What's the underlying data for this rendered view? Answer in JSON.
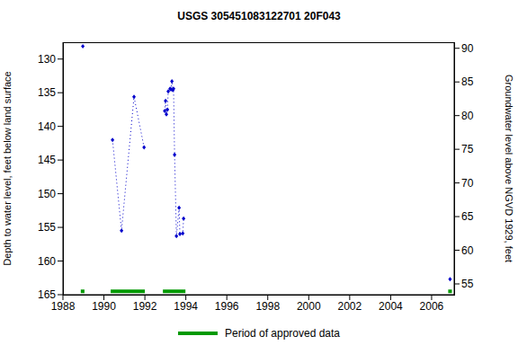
{
  "chart_data": {
    "type": "line",
    "title": "USGS 305451083122701 20F043",
    "y_label": "Depth to water level, feet below land surface",
    "y2_label": "Groundwater level above NGVD 1929, feet",
    "x": [
      1988.97,
      1988.97,
      1990.42,
      1990.86,
      1991.47,
      1991.96,
      1991.96,
      1992.97,
      1993.01,
      1993.05,
      1993.1,
      1993.14,
      1993.23,
      1993.27,
      1993.32,
      1993.36,
      1993.4,
      1993.45,
      1993.54,
      1993.67,
      1993.71,
      1993.85,
      1993.89,
      1993.89,
      2006.9
    ],
    "values": [
      128.1,
      null,
      142.0,
      155.5,
      135.6,
      143.1,
      null,
      137.7,
      136.2,
      138.2,
      137.5,
      134.8,
      134.4,
      134.5,
      133.3,
      134.6,
      134.4,
      144.2,
      156.3,
      152.1,
      156.0,
      155.9,
      153.7,
      null,
      162.7
    ],
    "color": "#0000cc",
    "marker": "diamond",
    "line_style": "dotted",
    "xlim": [
      1988,
      2007.1
    ],
    "xticks": [
      1988,
      1990,
      1992,
      1994,
      1996,
      1998,
      2000,
      2002,
      2004,
      2006
    ],
    "ylim": [
      127.5,
      165
    ],
    "yticks": [
      130,
      135,
      140,
      145,
      150,
      155,
      160,
      165
    ],
    "y2lim": [
      53.4,
      90.9
    ],
    "y2ticks": [
      55,
      60,
      65,
      70,
      75,
      80,
      85,
      90
    ],
    "approved_periods": {
      "label": "Period of approved data",
      "color": "#009900",
      "level": 164.5,
      "ranges": [
        [
          1988.87,
          1989.05
        ],
        [
          1990.33,
          1992.0
        ],
        [
          1992.88,
          1993.98
        ],
        [
          2006.81,
          2006.99
        ]
      ]
    }
  }
}
